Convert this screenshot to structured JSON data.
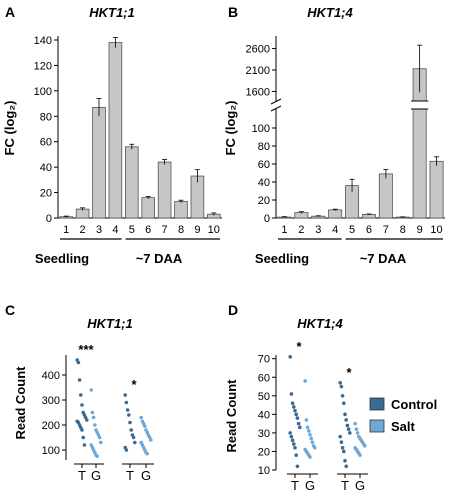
{
  "chart_data": [
    {
      "panel": "A",
      "type": "bar",
      "title": "HKT1;1",
      "ylabel": "FC (log₂)",
      "ylim": [
        0,
        140
      ],
      "yticks": [
        0,
        20,
        40,
        60,
        80,
        100,
        120,
        140
      ],
      "categories": [
        "1",
        "2",
        "3",
        "4",
        "5",
        "6",
        "7",
        "8",
        "9",
        "10"
      ],
      "values": [
        1,
        7,
        87,
        138,
        56,
        16,
        44,
        13,
        33,
        3
      ],
      "errors": [
        0.5,
        1,
        7,
        4,
        2,
        1,
        2,
        1,
        5,
        1
      ],
      "groups": [
        {
          "label": "Seedling",
          "from": 0,
          "to": 3
        },
        {
          "label": "~7 DAA",
          "from": 4,
          "to": 9
        }
      ]
    },
    {
      "panel": "B",
      "type": "bar",
      "title": "HKT1;4",
      "ylabel": "FC (log₂)",
      "axis_break": true,
      "lower_ylim": [
        0,
        120
      ],
      "lower_yticks": [
        0,
        20,
        40,
        60,
        80,
        100
      ],
      "upper_ylim": [
        1400,
        2800
      ],
      "upper_yticks": [
        1600,
        2100,
        2600
      ],
      "categories": [
        "1",
        "2",
        "3",
        "4",
        "5",
        "6",
        "7",
        "8",
        "9",
        "10"
      ],
      "values": [
        1,
        6,
        2,
        9,
        36,
        4,
        49,
        1,
        2130,
        63
      ],
      "errors": [
        0.5,
        1,
        0.5,
        0.8,
        7,
        0.5,
        5,
        0.3,
        550,
        5
      ],
      "groups": [
        {
          "label": "Seedling",
          "from": 0,
          "to": 3
        },
        {
          "label": "~7 DAA",
          "from": 4,
          "to": 9
        }
      ]
    },
    {
      "panel": "C",
      "type": "scatter",
      "title": "HKT1;1",
      "ylabel": "Read Count",
      "ylim": [
        60,
        480
      ],
      "yticks": [
        100,
        200,
        300,
        400
      ],
      "categories": [
        "T",
        "G",
        "T",
        "G"
      ],
      "category_colors": [
        "#c0392b",
        "#000000",
        "#c0392b",
        "#000000"
      ],
      "significance": [
        {
          "label": "***",
          "pair": 0
        },
        {
          "label": "*",
          "pair": 1
        }
      ],
      "series": [
        {
          "name": "Control",
          "values": [
            460,
            450,
            380,
            320,
            280,
            250,
            240,
            230,
            220,
            215,
            210,
            200,
            190,
            180,
            150,
            120
          ]
        },
        {
          "name": "Salt",
          "values": [
            340,
            250,
            230,
            200,
            180,
            170,
            160,
            150,
            130,
            120,
            110,
            100,
            90,
            80,
            75
          ]
        },
        {
          "name": "Control",
          "values": [
            320,
            290,
            260,
            240,
            210,
            180,
            160,
            150,
            130,
            110,
            100
          ]
        },
        {
          "name": "Salt",
          "values": [
            230,
            215,
            205,
            195,
            180,
            170,
            160,
            150,
            140,
            130,
            120,
            110,
            100,
            90,
            85
          ]
        }
      ]
    },
    {
      "panel": "D",
      "type": "scatter",
      "title": "HKT1;4",
      "ylabel": "Read Count",
      "ylim": [
        10,
        72
      ],
      "yticks": [
        10,
        20,
        30,
        40,
        50,
        60,
        70
      ],
      "categories": [
        "T",
        "G",
        "T",
        "G"
      ],
      "category_colors": [
        "#c0392b",
        "#000000",
        "#c0392b",
        "#000000"
      ],
      "significance": [
        {
          "label": "*",
          "pair": 0
        },
        {
          "label": "*",
          "pair": 1
        }
      ],
      "series": [
        {
          "name": "Control",
          "values": [
            71,
            51,
            46,
            44,
            42,
            40,
            38,
            35,
            33,
            30,
            28,
            26,
            24,
            22,
            18,
            12
          ]
        },
        {
          "name": "Salt",
          "values": [
            58,
            37,
            33,
            31,
            29,
            27,
            25,
            23,
            22,
            21,
            20,
            19,
            18,
            17
          ]
        },
        {
          "name": "Control",
          "values": [
            57,
            55,
            50,
            46,
            40,
            37,
            34,
            32,
            30,
            28,
            25,
            22,
            20,
            15,
            12
          ]
        },
        {
          "name": "Salt",
          "values": [
            35,
            32,
            30,
            28,
            27,
            26,
            25,
            24,
            23,
            22,
            21,
            20,
            19,
            18
          ]
        }
      ]
    }
  ],
  "legend": {
    "items": [
      {
        "label": "Control",
        "color": "#3b6a93"
      },
      {
        "label": "Salt",
        "color": "#6fa8d6"
      }
    ]
  },
  "colors": {
    "bar_fill": "#c6c6c6",
    "bar_stroke": "#555555",
    "control_dot": "#3b6a93",
    "salt_dot": "#6fa8d6"
  }
}
